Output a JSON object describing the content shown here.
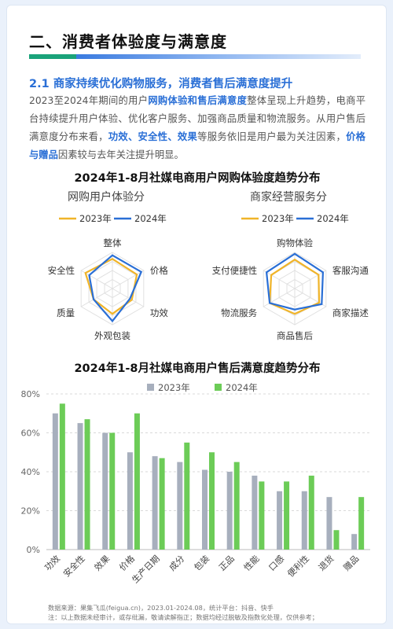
{
  "page": {
    "title": "二、消费者体验度与满意度",
    "section_heading": "2.1 商家持续优化购物服务，消费者售后满意度提升",
    "intro_parts": [
      {
        "text": "2023至2024年期间的用户",
        "hl": false
      },
      {
        "text": "网购体验和售后满意度",
        "hl": true
      },
      {
        "text": "整体呈现上升趋势，电商平台持续提升用户体验、优化客户服务、加强商品质量和物流服务。从用户售后满意度分布来看，",
        "hl": false
      },
      {
        "text": "功效、安全性、效果",
        "hl": true
      },
      {
        "text": "等服务依旧是用户最为关注因素，",
        "hl": false
      },
      {
        "text": "价格与赠品",
        "hl": true
      },
      {
        "text": "因素较与去年关注提升明显。",
        "hl": false
      }
    ],
    "chart1_title": "2024年1-8月社媒电商用户网购体验度趋势分布",
    "chart2_title": "2024年1-8月社媒电商用户售后满意度趋势分布",
    "footnote_source": "数据来源：果集飞瓜(feigua.cn)，2023.01-2024.08，统计平台：抖音、快手",
    "footnote_note": "注：以上数据未经审计，或存纰漏，敬请读解指正；数据均经过脱敏及指数化处理，仅供参考；"
  },
  "colors": {
    "series_2023_line": "#f0b429",
    "series_2024_line": "#2a6fd6",
    "series_2023_bar": "#a7afbd",
    "series_2024_bar": "#6ccc57",
    "grid": "#e0e0e0"
  },
  "chart_data": [
    {
      "type": "radar",
      "title": "网购用户体验分",
      "legend_position": "top",
      "axes": [
        "整体",
        "价格",
        "功效",
        "外观包装",
        "质量",
        "安全性"
      ],
      "series": [
        {
          "name": "2023年",
          "values": [
            0.82,
            0.78,
            0.62,
            0.7,
            0.6,
            0.86
          ]
        },
        {
          "name": "2024年",
          "values": [
            0.92,
            0.92,
            0.56,
            0.9,
            0.6,
            0.74
          ]
        }
      ]
    },
    {
      "type": "radar",
      "title": "商家经营服务分",
      "legend_position": "top",
      "axes": [
        "购物体验",
        "客服沟通",
        "商家描述",
        "商品售后",
        "物流服务",
        "支付便捷性"
      ],
      "series": [
        {
          "name": "2023年",
          "values": [
            0.8,
            0.76,
            0.78,
            0.7,
            0.8,
            0.75
          ]
        },
        {
          "name": "2024年",
          "values": [
            0.96,
            0.9,
            0.86,
            0.58,
            0.8,
            0.9
          ]
        }
      ]
    },
    {
      "type": "bar",
      "title": "",
      "legend_position": "top",
      "categories": [
        "功效",
        "安全性",
        "效果",
        "价格",
        "生产日期",
        "成分",
        "包装",
        "正品",
        "性能",
        "口感",
        "便利性",
        "退货",
        "赠品"
      ],
      "series": [
        {
          "name": "2023年",
          "values": [
            70,
            65,
            60,
            50,
            48,
            45,
            41,
            40,
            38,
            30,
            30,
            27,
            8
          ]
        },
        {
          "name": "2024年",
          "values": [
            75,
            67,
            60,
            70,
            47,
            55,
            50,
            45,
            35,
            35,
            38,
            10,
            27
          ]
        }
      ],
      "ylim": [
        0,
        80
      ],
      "yticks": [
        "0%",
        "20%",
        "40%",
        "60%",
        "80%"
      ],
      "grid": "horizontal dashed"
    }
  ]
}
